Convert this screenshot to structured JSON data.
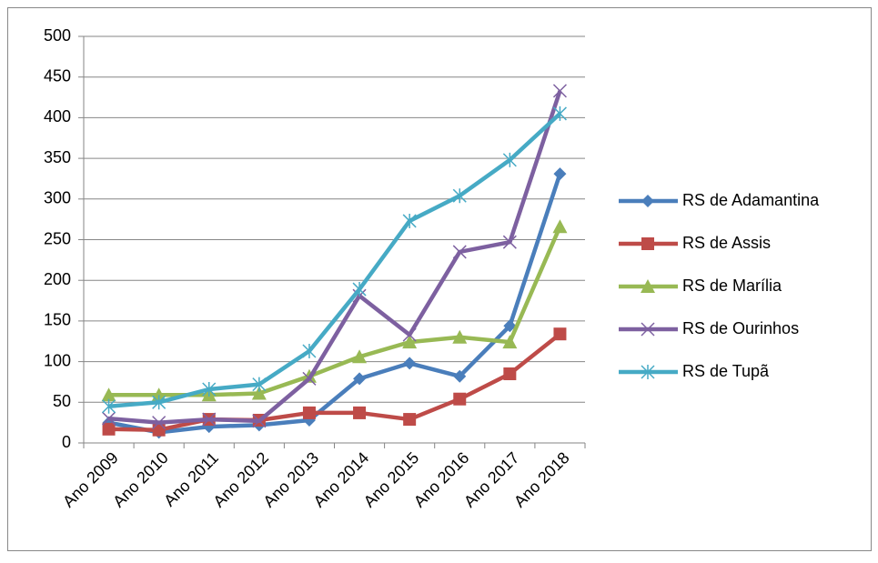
{
  "chart_data": {
    "type": "line",
    "categories": [
      "Ano 2009",
      "Ano 2010",
      "Ano 2011",
      "Ano 2012",
      "Ano 2013",
      "Ano 2014",
      "Ano 2015",
      "Ano 2016",
      "Ano 2017",
      "Ano 2018"
    ],
    "series": [
      {
        "name": "RS de Adamantina",
        "color": "#4a7ebb",
        "marker": "diamond",
        "values": [
          25,
          13,
          20,
          22,
          28,
          79,
          98,
          82,
          144,
          331
        ]
      },
      {
        "name": "RS de Assis",
        "color": "#be4b48",
        "marker": "square",
        "values": [
          17,
          16,
          29,
          28,
          37,
          37,
          29,
          54,
          85,
          134
        ]
      },
      {
        "name": "RS de Marília",
        "color": "#98b954",
        "marker": "triangle",
        "values": [
          59,
          59,
          59,
          61,
          82,
          106,
          124,
          130,
          124,
          266
        ]
      },
      {
        "name": "RS de Ourinhos",
        "color": "#7d60a0",
        "marker": "x",
        "values": [
          30,
          25,
          29,
          27,
          79,
          181,
          133,
          235,
          247,
          433
        ]
      },
      {
        "name": "RS de Tupã",
        "color": "#46aac5",
        "marker": "star",
        "values": [
          45,
          50,
          66,
          72,
          113,
          189,
          273,
          304,
          348,
          405
        ]
      }
    ],
    "ylim": [
      0,
      500
    ],
    "yticks": [
      0,
      50,
      100,
      150,
      200,
      250,
      300,
      350,
      400,
      450,
      500
    ],
    "grid": true,
    "legend": "right"
  }
}
